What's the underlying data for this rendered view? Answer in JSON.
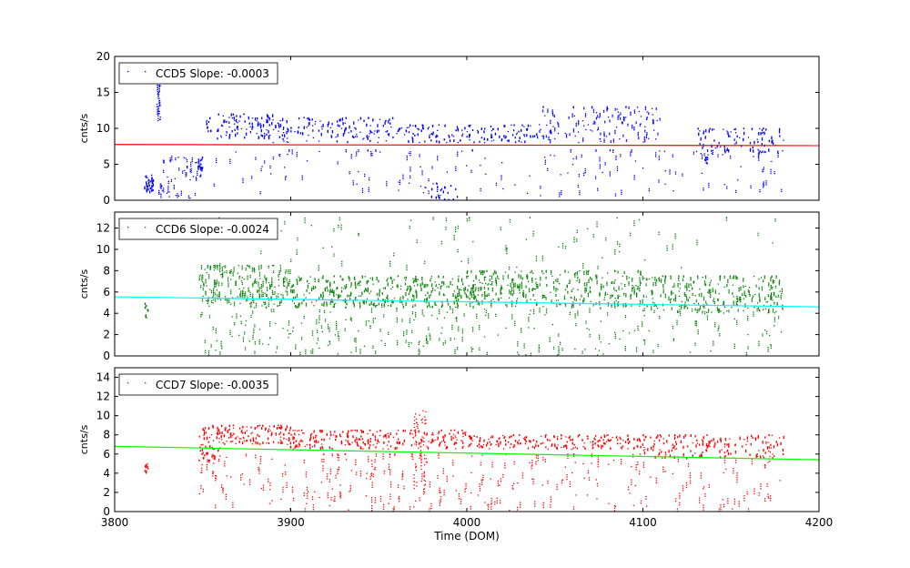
{
  "chart_data": [
    {
      "type": "scatter",
      "legend": "CCD5 Slope: -0.0003",
      "series_color": "#0000ff",
      "fit_color": "#ff0000",
      "ylabel": "cnts/s",
      "xlim": [
        3800,
        4200
      ],
      "ylim": [
        0,
        20
      ],
      "yticks": [
        0,
        5,
        10,
        15,
        20
      ],
      "legend_position": "top-left",
      "fit_line": {
        "x": [
          3800,
          4200
        ],
        "y": [
          7.75,
          7.6
        ]
      },
      "clusters": [
        {
          "x": [
            3817,
            3822
          ],
          "y": [
            0.8,
            3.5
          ],
          "n": 40
        },
        {
          "x": [
            3824,
            3826
          ],
          "y": [
            11,
            19
          ],
          "n": 35
        },
        {
          "x": [
            3825,
            3848
          ],
          "y": [
            0.2,
            6.5
          ],
          "n": 60
        },
        {
          "x": [
            3848,
            3850
          ],
          "y": [
            3,
            6
          ],
          "n": 12
        },
        {
          "x": [
            3852,
            3855
          ],
          "y": [
            9,
            11.5
          ],
          "n": 10
        },
        {
          "x": [
            3858,
            3890
          ],
          "y": [
            8.5,
            12
          ],
          "n": 90
        },
        {
          "x": [
            3890,
            3960
          ],
          "y": [
            8,
            11.5
          ],
          "n": 140
        },
        {
          "x": [
            3960,
            4010
          ],
          "y": [
            8,
            10.5
          ],
          "n": 90
        },
        {
          "x": [
            4010,
            4040
          ],
          "y": [
            8,
            10.5
          ],
          "n": 55
        },
        {
          "x": [
            4040,
            4110
          ],
          "y": [
            8,
            13
          ],
          "n": 140
        },
        {
          "x": [
            4130,
            4180
          ],
          "y": [
            6.5,
            10
          ],
          "n": 90
        },
        {
          "x": [
            3855,
            4180
          ],
          "y": [
            0.5,
            7
          ],
          "n": 170
        },
        {
          "x": [
            3975,
            3995
          ],
          "y": [
            0,
            2.5
          ],
          "n": 30
        },
        {
          "x": [
            4135,
            4137
          ],
          "y": [
            5,
            6
          ],
          "n": 10
        }
      ]
    },
    {
      "type": "scatter",
      "legend": "CCD6 Slope: -0.0024",
      "series_color": "#008000",
      "fit_color": "#00ffff",
      "ylabel": "cnts/s",
      "xlim": [
        3800,
        4200
      ],
      "ylim": [
        0,
        13.5
      ],
      "yticks": [
        0,
        2,
        4,
        6,
        8,
        10,
        12
      ],
      "legend_position": "top-left",
      "fit_line": {
        "x": [
          3800,
          4200
        ],
        "y": [
          5.55,
          4.6
        ]
      },
      "clusters": [
        {
          "x": [
            3817,
            3819
          ],
          "y": [
            3.5,
            5
          ],
          "n": 10
        },
        {
          "x": [
            3848,
            3900
          ],
          "y": [
            4.5,
            8.5
          ],
          "n": 230
        },
        {
          "x": [
            3900,
            4000
          ],
          "y": [
            4.5,
            7.5
          ],
          "n": 330
        },
        {
          "x": [
            4000,
            4100
          ],
          "y": [
            4.5,
            8
          ],
          "n": 330
        },
        {
          "x": [
            4100,
            4180
          ],
          "y": [
            4,
            7.5
          ],
          "n": 260
        },
        {
          "x": [
            3848,
            4180
          ],
          "y": [
            0,
            4.5
          ],
          "n": 300
        },
        {
          "x": [
            3850,
            4180
          ],
          "y": [
            8,
            13
          ],
          "n": 90
        }
      ]
    },
    {
      "type": "scatter",
      "legend": "CCD7 Slope: -0.0035",
      "series_color": "#ff0000",
      "fit_color": "#00ff00",
      "ylabel": "cnts/s",
      "xlabel": "Time (DOM)",
      "xlim": [
        3800,
        4200
      ],
      "ylim": [
        0,
        15
      ],
      "yticks": [
        0,
        2,
        4,
        6,
        8,
        10,
        12,
        14
      ],
      "xticks": [
        3800,
        3900,
        4000,
        4100,
        4200
      ],
      "legend_position": "top-left",
      "fit_line": {
        "x": [
          3800,
          4200
        ],
        "y": [
          6.8,
          5.4
        ]
      },
      "clusters": [
        {
          "x": [
            3817,
            3819
          ],
          "y": [
            4,
            5
          ],
          "n": 10
        },
        {
          "x": [
            3848,
            3900
          ],
          "y": [
            7,
            9
          ],
          "n": 150
        },
        {
          "x": [
            3900,
            4000
          ],
          "y": [
            6.5,
            8.5
          ],
          "n": 240
        },
        {
          "x": [
            4000,
            4100
          ],
          "y": [
            6.5,
            8
          ],
          "n": 200
        },
        {
          "x": [
            4100,
            4180
          ],
          "y": [
            5.5,
            8
          ],
          "n": 170
        },
        {
          "x": [
            3848,
            3860
          ],
          "y": [
            5,
            7
          ],
          "n": 40
        },
        {
          "x": [
            3848,
            4180
          ],
          "y": [
            0,
            6
          ],
          "n": 320
        },
        {
          "x": [
            3970,
            3977
          ],
          "y": [
            2,
            11
          ],
          "n": 40
        }
      ]
    }
  ]
}
